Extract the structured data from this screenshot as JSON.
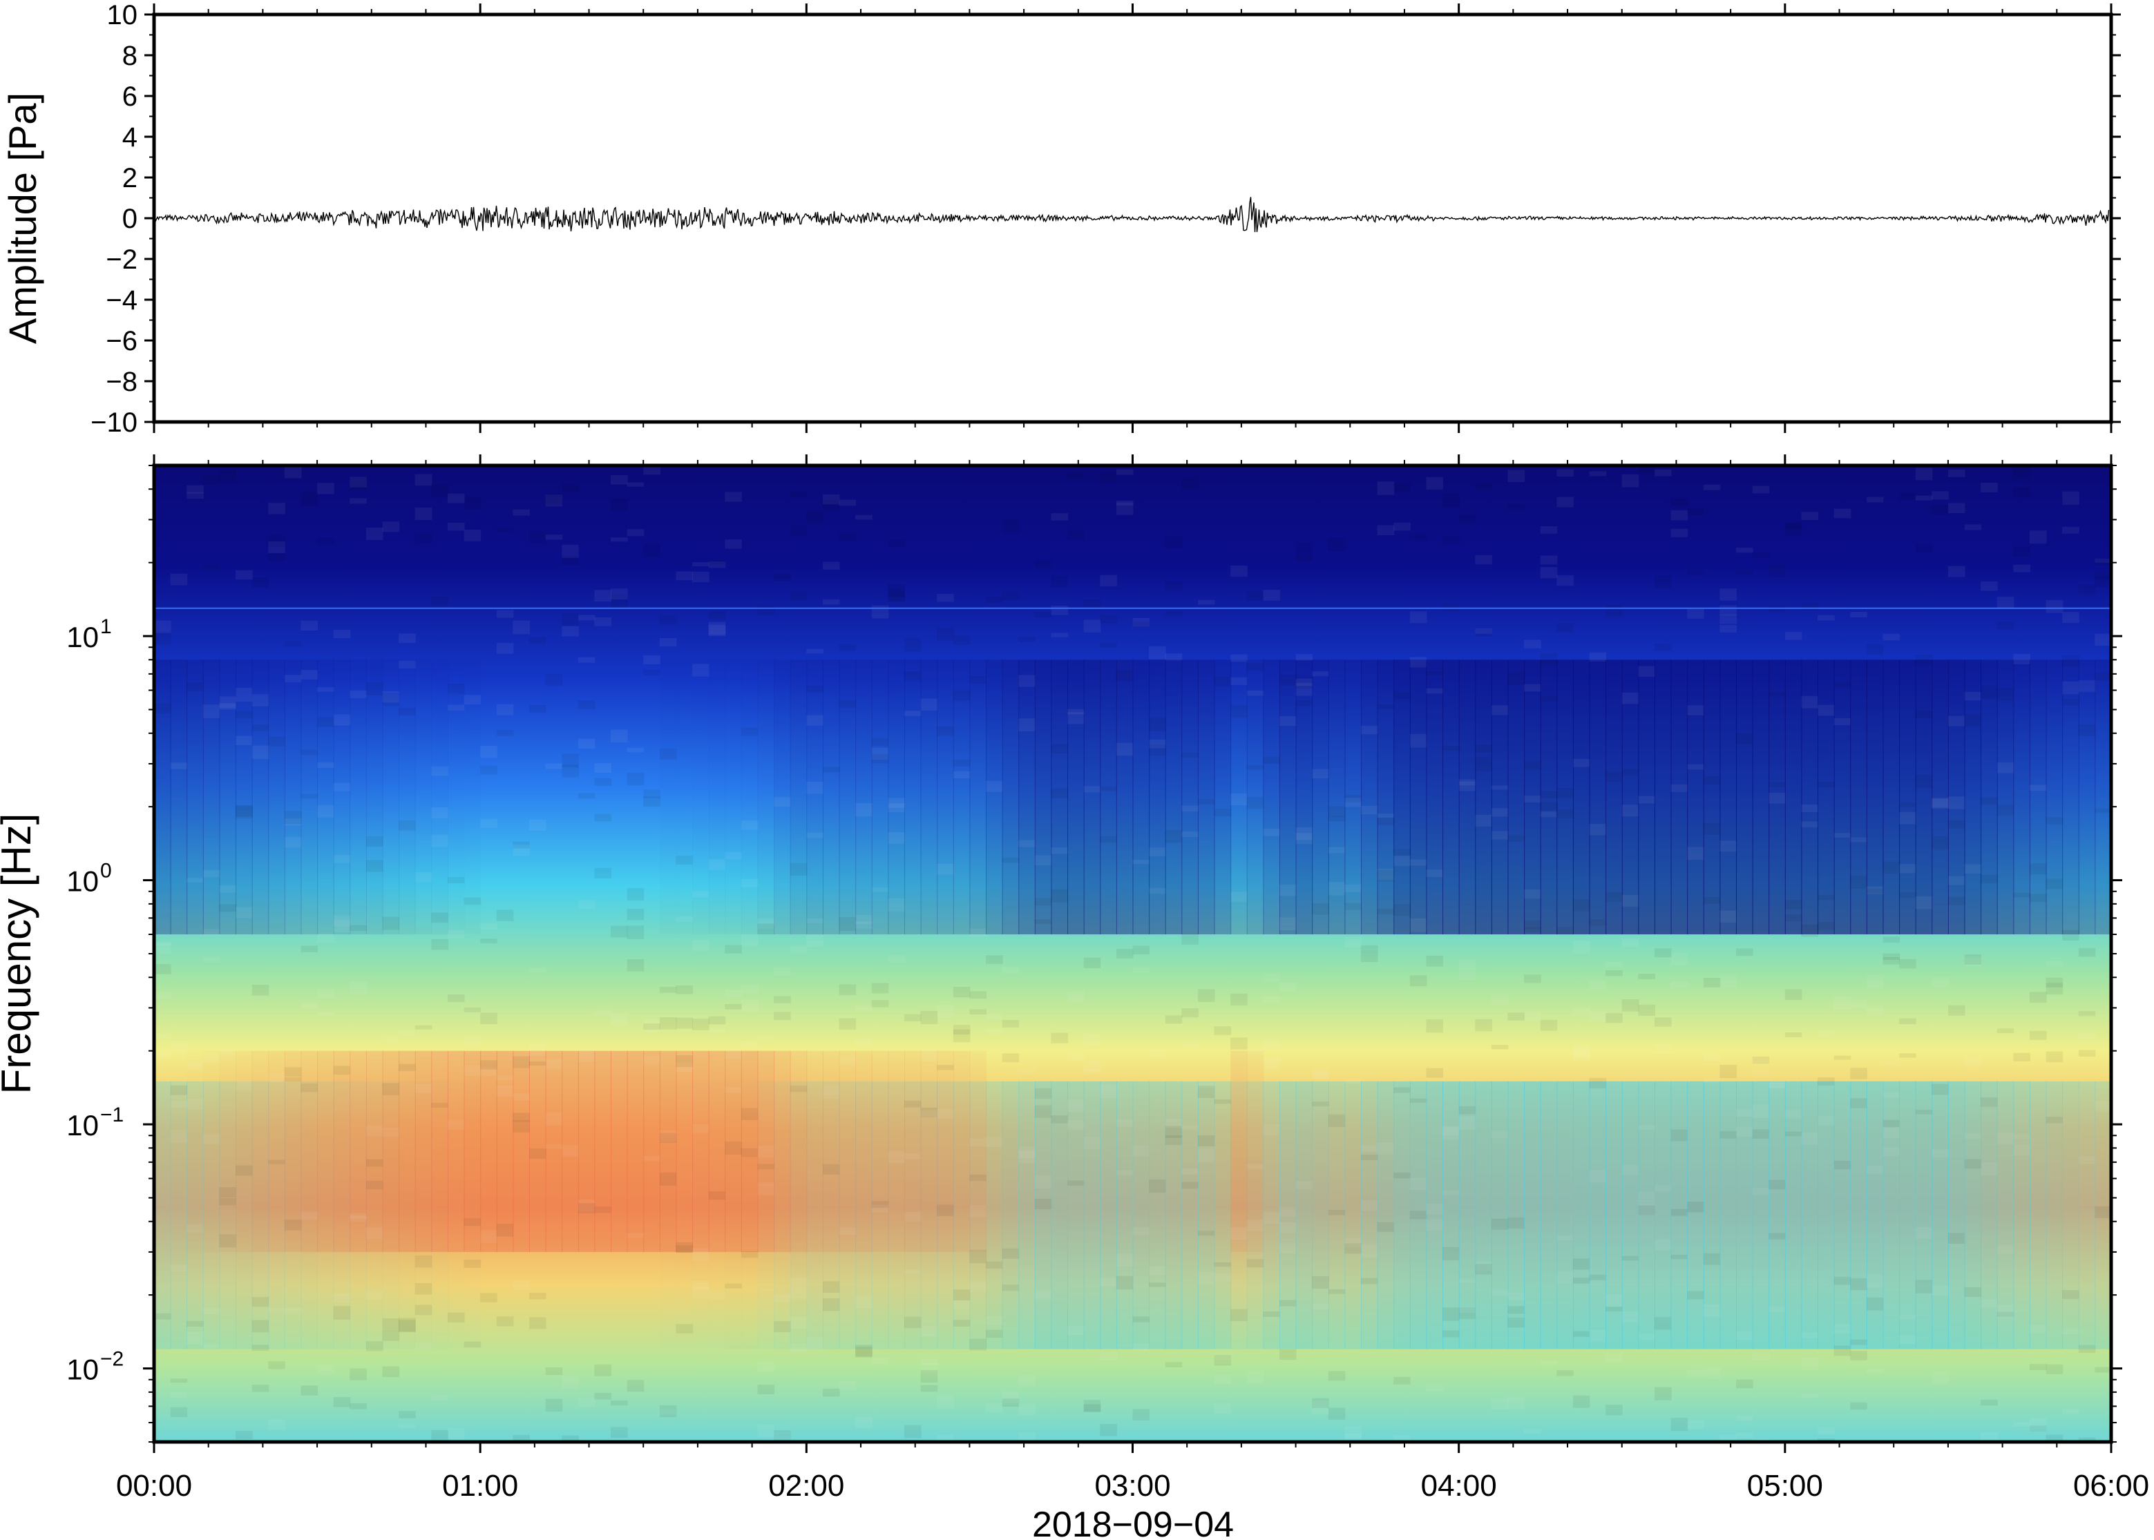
{
  "figure": {
    "time_axis": {
      "tick_labels": [
        "00:00",
        "01:00",
        "02:00",
        "03:00",
        "04:00",
        "05:00",
        "06:00"
      ],
      "date_label": "2018−09−04"
    }
  },
  "chart_data": [
    {
      "type": "line",
      "title": "",
      "ylabel": "Amplitude [Pa]",
      "xlim": [
        "2018-09-04T00:00",
        "2018-09-04T06:00"
      ],
      "ylim": [
        -10,
        10
      ],
      "yticks": [
        10,
        8,
        6,
        4,
        2,
        0,
        -2,
        -4,
        -6,
        -8,
        -10
      ],
      "ytick_labels": [
        "10",
        "8",
        "6",
        "4",
        "2",
        "0",
        "−2",
        "−4",
        "−6",
        "−8",
        "−10"
      ],
      "grid": false,
      "series": [
        {
          "color": "#000000",
          "envelope": {
            "time": [
              "00:00",
              "00:15",
              "00:30",
              "00:45",
              "01:00",
              "01:15",
              "01:30",
              "01:45",
              "02:00",
              "02:15",
              "02:30",
              "02:45",
              "03:00",
              "03:15",
              "03:22",
              "03:25",
              "03:30",
              "03:40",
              "03:45",
              "04:00",
              "04:15",
              "04:30",
              "04:45",
              "05:00",
              "05:15",
              "05:30",
              "05:45",
              "06:00"
            ],
            "amplitude": [
              0.15,
              0.25,
              0.35,
              0.55,
              0.65,
              0.65,
              0.6,
              0.55,
              0.35,
              0.25,
              0.2,
              0.15,
              0.12,
              0.12,
              1.2,
              0.4,
              0.12,
              0.1,
              0.2,
              0.1,
              0.1,
              0.08,
              0.08,
              0.08,
              0.08,
              0.1,
              0.25,
              0.4
            ]
          }
        }
      ]
    },
    {
      "type": "heatmap",
      "title": "",
      "ylabel": "Frequency [Hz]",
      "yscale": "log",
      "ylim": [
        0.005,
        50
      ],
      "yticks": [
        0.01,
        0.1,
        1,
        10
      ],
      "ytick_labels": [
        {
          "base": "10",
          "exp": "−2"
        },
        {
          "base": "10",
          "exp": "−1"
        },
        {
          "base": "10",
          "exp": "0"
        },
        {
          "base": "10",
          "exp": "1"
        }
      ],
      "xlim": [
        "2018-09-04T00:00",
        "2018-09-04T06:00"
      ],
      "colormap": "rainbow",
      "colors": [
        "#0a0a78",
        "#1030d0",
        "#2f8cf0",
        "#46d2ef",
        "#9ee3a7",
        "#f2ef8a",
        "#f6b860",
        "#ec5a45"
      ],
      "level_profile": {
        "time": [
          "00:00",
          "00:30",
          "01:00",
          "01:30",
          "01:50",
          "02:00",
          "02:30",
          "02:45",
          "03:00",
          "03:15",
          "03:20",
          "03:30",
          "03:40",
          "03:50",
          "04:00",
          "04:30",
          "05:00",
          "05:30",
          "05:45",
          "06:00"
        ],
        "relative_level": [
          0.55,
          0.8,
          1.0,
          1.0,
          0.95,
          0.75,
          0.7,
          0.35,
          0.4,
          0.5,
          0.75,
          0.4,
          0.55,
          0.25,
          0.2,
          0.15,
          0.15,
          0.2,
          0.45,
          0.6
        ]
      },
      "colorbar": false
    }
  ]
}
